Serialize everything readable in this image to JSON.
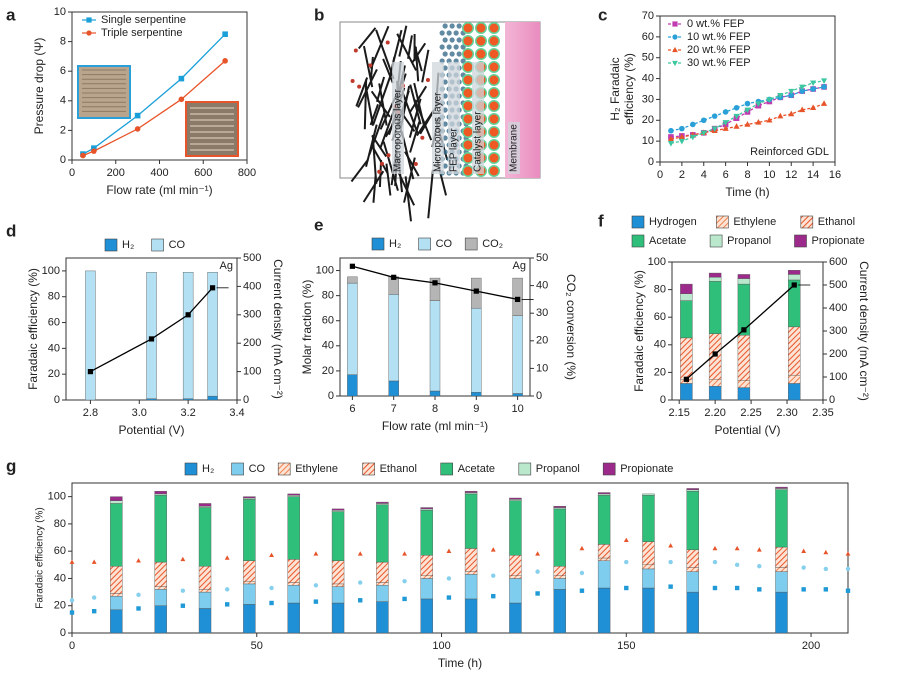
{
  "chart_data": [
    {
      "panel": "a",
      "type": "line",
      "legend": "upper left",
      "xlabel": "Flow rate (ml min⁻¹)",
      "ylabel": "Pressure drop (Ψ)",
      "x": [
        50,
        100,
        300,
        500,
        700
      ],
      "series": [
        {
          "name": "Single serpentine",
          "color": "#1a9fd9",
          "marker": "square",
          "values": [
            0.4,
            0.8,
            3.0,
            5.5,
            8.5
          ]
        },
        {
          "name": "Triple serpentine",
          "color": "#e8542a",
          "marker": "circle",
          "values": [
            0.3,
            0.6,
            2.1,
            4.1,
            6.7
          ]
        }
      ],
      "xlim": [
        0,
        800
      ],
      "xticks": [
        0,
        200,
        400,
        600,
        800
      ],
      "ylim": [
        0,
        10
      ],
      "yticks": [
        0,
        2,
        4,
        6,
        8,
        10
      ]
    },
    {
      "panel": "b",
      "type": "diagram",
      "labels": [
        "Macroporous layer",
        "Microporous layer",
        "FEP layer",
        "Catalyst layer",
        "Membrane"
      ]
    },
    {
      "panel": "c",
      "type": "line",
      "legend": "upper left",
      "dashed": true,
      "xlabel": "Time (h)",
      "ylabel": [
        "H₂ Faradaic",
        "efficiency (%)"
      ],
      "annotation": "Reinforced GDL",
      "x": [
        1,
        2,
        3,
        4,
        5,
        6,
        7,
        8,
        9,
        10,
        11,
        12,
        13,
        14,
        15
      ],
      "series": [
        {
          "name": "0 wt.% FEP",
          "color": "#c03cb0",
          "marker": "square",
          "values": [
            12,
            12.5,
            13,
            14,
            16,
            18,
            21,
            24,
            27,
            29,
            31,
            32,
            34,
            35,
            36
          ]
        },
        {
          "name": "10 wt.% FEP",
          "color": "#2aa0d8",
          "marker": "circle",
          "values": [
            15,
            16,
            18,
            20,
            22,
            24,
            26,
            28,
            29,
            30,
            31,
            32,
            34,
            35,
            36
          ]
        },
        {
          "name": "20 wt.% FEP",
          "color": "#e8542a",
          "marker": "triangle",
          "values": [
            11,
            12,
            13,
            14,
            15,
            16,
            17,
            18,
            19,
            20,
            22,
            23,
            25,
            26,
            28
          ]
        },
        {
          "name": "30 wt.% FEP",
          "color": "#3cc7a0",
          "marker": "triangle-down",
          "values": [
            9,
            10,
            12,
            14,
            16,
            19,
            22,
            25,
            28,
            30,
            32,
            34,
            36,
            38,
            39
          ]
        }
      ],
      "xlim": [
        0,
        16
      ],
      "xticks": [
        0,
        2,
        4,
        6,
        8,
        10,
        12,
        14,
        16
      ],
      "ylim": [
        0,
        70
      ],
      "yticks": [
        0,
        10,
        20,
        30,
        40,
        50,
        60,
        70
      ]
    },
    {
      "panel": "d",
      "type": "bar_line",
      "legend": "top",
      "xlabel": "Potential (V)",
      "ylabel": "Faradaic efficiency (%)",
      "y2label": "Current density (mA cm⁻²)",
      "annotation": "Ag",
      "x": [
        2.8,
        3.05,
        3.2,
        3.3
      ],
      "series": [
        {
          "name": "H₂",
          "color": "#1f8fd6",
          "values": [
            0,
            1,
            1,
            3
          ]
        },
        {
          "name": "CO",
          "color": "#b3e0f2",
          "values": [
            100,
            98,
            98,
            96
          ]
        },
        {
          "axis": "y2",
          "color": "#000000",
          "values": [
            100,
            215,
            300,
            395
          ]
        }
      ],
      "xlim": [
        2.7,
        3.4
      ],
      "xticks": [
        2.8,
        {
          "value": 3,
          "label": "3.0"
        },
        3.2,
        3.4
      ],
      "ylim": [
        0,
        110
      ],
      "yticks": [
        0,
        20,
        40,
        60,
        80,
        100
      ],
      "y2lim": [
        0,
        500
      ],
      "y2ticks": [
        0,
        100,
        200,
        300,
        400,
        500
      ]
    },
    {
      "panel": "e",
      "type": "bar_line",
      "legend": "top",
      "xlabel": "Flow rate (ml min⁻¹)",
      "ylabel": "Molar fraction (%)",
      "y2label": "CO₂ conversion (%)",
      "annotation": "Ag",
      "x": [
        6,
        7,
        8,
        9,
        10
      ],
      "series": [
        {
          "name": "H₂",
          "color": "#1f8fd6",
          "values": [
            17,
            12,
            4,
            3,
            2
          ]
        },
        {
          "name": "CO",
          "color": "#b3e0f2",
          "values": [
            73,
            69,
            72,
            67,
            62
          ]
        },
        {
          "name": "CO₂",
          "color": "#b5b5b5",
          "values": [
            5,
            14,
            18,
            24,
            30
          ]
        },
        {
          "axis": "y2",
          "color": "#000000",
          "values": [
            47,
            43,
            41,
            38,
            35
          ]
        }
      ],
      "xlim": [
        5.7,
        10.3
      ],
      "xticks": [
        6,
        7,
        8,
        9,
        10
      ],
      "ylim": [
        0,
        110
      ],
      "yticks": [
        0,
        20,
        40,
        60,
        80,
        100
      ],
      "y2lim": [
        0,
        50
      ],
      "y2ticks": [
        0,
        10,
        20,
        30,
        40,
        50
      ]
    },
    {
      "panel": "f",
      "type": "bar_line",
      "legend": "top",
      "xlabel": "Potential (V)",
      "ylabel": "Faradaic efficiency (%)",
      "y2label": "Current density (mA cm⁻²)",
      "x": [
        2.16,
        2.2,
        2.24,
        2.31
      ],
      "series": [
        {
          "name": "Hydrogen",
          "color": "#1f8fd6",
          "values": [
            12,
            10,
            9,
            12
          ]
        },
        {
          "name": "Ethylene",
          "color": "#f08050",
          "hatch": true,
          "values": [
            3,
            5,
            5,
            6
          ]
        },
        {
          "name": "Ethanol",
          "color": "#e8542a",
          "hatch": true,
          "values": [
            30,
            33,
            33,
            35
          ]
        },
        {
          "name": "Acetate",
          "color": "#2fbf7a",
          "values": [
            27,
            38,
            37,
            34
          ]
        },
        {
          "name": "Propanol",
          "color": "#b9e8cc",
          "values": [
            5,
            3,
            4,
            4
          ]
        },
        {
          "name": "Propionate",
          "color": "#9c2a8a",
          "values": [
            7,
            3,
            3,
            3
          ]
        },
        {
          "axis": "y2",
          "color": "#000000",
          "values": [
            90,
            200,
            305,
            500
          ]
        }
      ],
      "xlim": [
        2.14,
        2.35
      ],
      "xticks": [
        2.15,
        {
          "value": 2.2,
          "label": "2.20"
        },
        2.25,
        {
          "value": 2.3,
          "label": "2.30"
        },
        2.35
      ],
      "ylim": [
        0,
        100
      ],
      "yticks": [
        0,
        20,
        40,
        60,
        80,
        100
      ],
      "y2lim": [
        0,
        600
      ],
      "y2ticks": [
        0,
        100,
        200,
        300,
        400,
        500,
        600
      ]
    },
    {
      "panel": "g",
      "type": "bar_scatter",
      "legend": "top",
      "xlabel": "Time (h)",
      "ylabel": "Faradaic efficiency (%)",
      "x": [
        12,
        24,
        36,
        48,
        60,
        72,
        84,
        96,
        108,
        120,
        132,
        144,
        156,
        168,
        192
      ],
      "series": [
        {
          "name": "H₂",
          "color": "#1f8fd6",
          "values": [
            17,
            20,
            18,
            21,
            22,
            22,
            23,
            25,
            25,
            22,
            32,
            33,
            33,
            30,
            30
          ]
        },
        {
          "name": "CO",
          "color": "#7fcdee",
          "values": [
            10,
            12,
            12,
            15,
            13,
            12,
            12,
            15,
            18,
            18,
            8,
            20,
            14,
            15,
            15
          ]
        },
        {
          "name": "Ethylene",
          "color": "#f08050",
          "hatch": true,
          "values": [
            2,
            2,
            2,
            2,
            2,
            2,
            2,
            2,
            2,
            2,
            2,
            2,
            3,
            3,
            3
          ]
        },
        {
          "name": "Ethanol",
          "color": "#e8542a",
          "hatch": true,
          "values": [
            20,
            18,
            17,
            15,
            17,
            17,
            15,
            15,
            17,
            15,
            7,
            10,
            17,
            13,
            15
          ]
        },
        {
          "name": "Acetate",
          "color": "#2fbf7a",
          "values": [
            46,
            49,
            43,
            45,
            46,
            36,
            42,
            33,
            40,
            40,
            42,
            36,
            34,
            43,
            42
          ]
        },
        {
          "name": "Propanol",
          "color": "#b9e8cc",
          "values": [
            2,
            1,
            1,
            1,
            1,
            1,
            1,
            1,
            1,
            1,
            1,
            1,
            1,
            1,
            1
          ]
        },
        {
          "name": "Propionate",
          "color": "#9c2a8a",
          "values": [
            3,
            2,
            2,
            1,
            1,
            1,
            1,
            1,
            1,
            1,
            1,
            1,
            0,
            1,
            1
          ]
        }
      ],
      "scatter": [
        {
          "color": "#1f9ad6",
          "marker": "square",
          "x": [
            0,
            6,
            12,
            18,
            24,
            30,
            36,
            42,
            48,
            54,
            60,
            66,
            72,
            78,
            84,
            90,
            96,
            102,
            108,
            114,
            120,
            126,
            132,
            138,
            144,
            150,
            156,
            162,
            168,
            174,
            180,
            186,
            192,
            198,
            204,
            210
          ],
          "values": [
            15,
            16,
            17,
            18,
            19,
            20,
            20,
            21,
            22,
            22,
            23,
            23,
            24,
            24,
            25,
            25,
            25,
            26,
            26,
            27,
            28,
            29,
            30,
            31,
            33,
            33,
            33,
            34,
            34,
            33,
            33,
            32,
            32,
            32,
            32,
            31
          ]
        },
        {
          "color": "#86d0ee",
          "marker": "circle",
          "x": [
            0,
            6,
            12,
            18,
            24,
            30,
            36,
            42,
            48,
            54,
            60,
            66,
            72,
            78,
            84,
            90,
            96,
            102,
            108,
            114,
            120,
            126,
            132,
            138,
            144,
            150,
            156,
            162,
            168,
            174,
            180,
            186,
            192,
            198,
            204,
            210
          ],
          "values": [
            24,
            26,
            27,
            28,
            30,
            31,
            32,
            32,
            33,
            33,
            34,
            35,
            36,
            37,
            38,
            38,
            39,
            40,
            40,
            42,
            44,
            45,
            43,
            44,
            48,
            52,
            51,
            52,
            53,
            52,
            50,
            49,
            48,
            48,
            47,
            47
          ]
        },
        {
          "color": "#e8542a",
          "marker": "triangle",
          "x": [
            0,
            6,
            12,
            18,
            24,
            30,
            36,
            42,
            48,
            54,
            60,
            66,
            72,
            78,
            84,
            90,
            96,
            102,
            108,
            114,
            120,
            126,
            132,
            138,
            144,
            150,
            156,
            162,
            168,
            174,
            180,
            186,
            192,
            198,
            204,
            210
          ],
          "values": [
            52,
            52,
            53,
            53,
            54,
            54,
            54,
            55,
            56,
            57,
            58,
            58,
            58,
            58,
            57,
            58,
            59,
            60,
            60,
            61,
            60,
            58,
            56,
            62,
            70,
            68,
            66,
            64,
            63,
            62,
            62,
            61,
            60,
            60,
            59,
            58
          ]
        }
      ],
      "xlim": [
        0,
        210
      ],
      "xticks": [
        0,
        50,
        100,
        150,
        200
      ],
      "ylim": [
        0,
        110
      ],
      "yticks": [
        0,
        20,
        40,
        60,
        80,
        100
      ]
    }
  ]
}
